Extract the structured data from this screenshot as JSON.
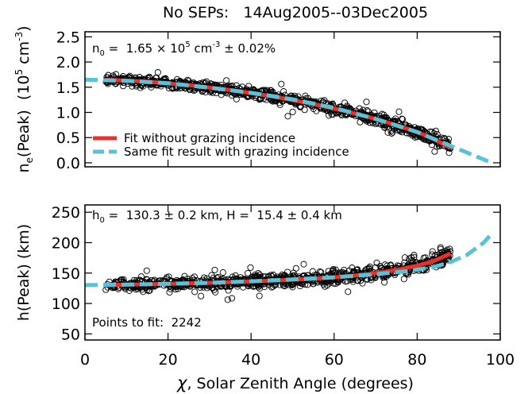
{
  "title": "No SEPs:   14Aug2005--03Dec2005",
  "xaxis": {
    "label": "χ, Solar Zenith Angle (degrees)",
    "label_symbol": "χ",
    "label_rest": ", Solar Zenith Angle (degrees)",
    "range": [
      0,
      100
    ],
    "ticks": [
      0,
      20,
      40,
      60,
      80,
      100
    ],
    "tick_labels": [
      "0",
      "20",
      "40",
      "60",
      "80",
      "100"
    ]
  },
  "colors": {
    "fit_without_grazing": "#e8302d",
    "fit_with_grazing": "#5bc1d6",
    "points": "#000000"
  },
  "chart_data": [
    {
      "type": "scatter",
      "panel": "top",
      "ylabel": "n_e(Peak) (10^5 cm^-3)",
      "ylabel_parts": {
        "main": "n",
        "sub": "e",
        "rest": "(Peak)  (10",
        "sup": "5",
        "unit": " cm",
        "unit_sup": "-3",
        "close": ")"
      },
      "ylim": [
        -0.08,
        2.6
      ],
      "yticks": [
        0.0,
        0.5,
        1.0,
        1.5,
        2.0,
        2.5
      ],
      "ytick_labels": [
        "0.0",
        "0.5",
        "1.0",
        "1.5",
        "2.0",
        "2.5"
      ],
      "annotation": "n0 = 1.65 × 10^5 cm^-3 ± 0.02%",
      "annotation_parts": {
        "a": "n",
        "a_sub": "0",
        "b": " =  1.65 × 10",
        "b_sup": "5",
        "c": " cm",
        "c_sup": "-3",
        "d": " ± 0.02%"
      },
      "fit_without_grazing": {
        "x": [
          5,
          15,
          25,
          35,
          45,
          55,
          62,
          68,
          72,
          76,
          80,
          84,
          88
        ],
        "y": [
          1.648,
          1.61,
          1.54,
          1.445,
          1.32,
          1.165,
          1.04,
          0.915,
          0.82,
          0.72,
          0.61,
          0.47,
          0.3
        ]
      },
      "fit_with_grazing": {
        "x": [
          0,
          10,
          20,
          30,
          40,
          50,
          60,
          70,
          80,
          85,
          90,
          95,
          98
        ],
        "y": [
          1.65,
          1.625,
          1.58,
          1.49,
          1.39,
          1.26,
          1.09,
          0.87,
          0.61,
          0.44,
          0.27,
          0.1,
          0.0
        ]
      },
      "scatter_summary": {
        "x_range": [
          5,
          88
        ],
        "note": "dense cloud of ~2242 points around the fit"
      },
      "legend": {
        "placement": "lower-left",
        "entries": [
          {
            "label": "Fit without grazing incidence",
            "color": "#e8302d",
            "style": "solid"
          },
          {
            "label": "Same fit result with grazing incidence",
            "color": "#5bc1d6",
            "style": "dashed"
          }
        ]
      }
    },
    {
      "type": "scatter",
      "panel": "bottom",
      "ylabel": "h(Peak) (km)",
      "ylim": [
        40,
        262
      ],
      "yticks": [
        50,
        100,
        150,
        200,
        250
      ],
      "ytick_labels": [
        "50",
        "100",
        "150",
        "200",
        "250"
      ],
      "annotation": "h0 =  130.3 ± 0.2 km, H =  15.4 ± 0.4 km",
      "annotation_parts": {
        "a": "h",
        "a_sub": "0",
        "b": " =  130.3 ± 0.2 km, H =  15.4 ± 0.4 km"
      },
      "points_to_fit_label": "Points to fit:  2242",
      "points_to_fit": 2242,
      "fit_without_grazing": {
        "x": [
          5,
          15,
          25,
          35,
          45,
          55,
          62,
          68,
          72,
          76,
          80,
          84,
          88
        ],
        "y": [
          130.5,
          131.5,
          133,
          135,
          137.5,
          140.5,
          144,
          148,
          152,
          156.5,
          162,
          170,
          182
        ]
      },
      "fit_with_grazing": {
        "x": [
          0,
          10,
          20,
          30,
          40,
          50,
          60,
          70,
          78,
          84,
          88,
          92,
          96,
          98
        ],
        "y": [
          130.3,
          131,
          132.3,
          134,
          136.5,
          139.5,
          143,
          148,
          153.5,
          160,
          168,
          180,
          200,
          215
        ]
      },
      "scatter_summary": {
        "x_range": [
          5,
          88
        ],
        "note": "dense cloud of ~2242 points around the fit"
      }
    }
  ]
}
